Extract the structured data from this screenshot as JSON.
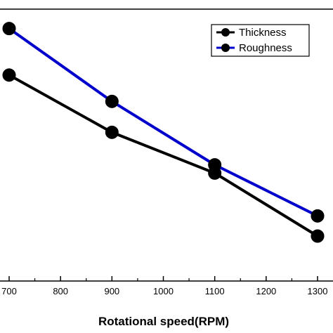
{
  "chart_data": {
    "type": "line",
    "xlabel": "Rotational speed(RPM)",
    "ylabel": "",
    "title": "",
    "x": [
      700,
      900,
      1100,
      1300
    ],
    "xticks": [
      700,
      800,
      900,
      1000,
      1100,
      1200,
      1300
    ],
    "xlim": [
      700,
      1300
    ],
    "ylim": [
      0,
      1
    ],
    "legend_position": "top-right",
    "grid": false,
    "series": [
      {
        "name": "Thickness",
        "color": "#000000",
        "values": [
          0.795,
          0.545,
          0.367,
          0.092
        ]
      },
      {
        "name": "Roughness",
        "color": "#0000cc",
        "values": [
          0.998,
          0.68,
          0.403,
          0.18
        ]
      }
    ]
  }
}
